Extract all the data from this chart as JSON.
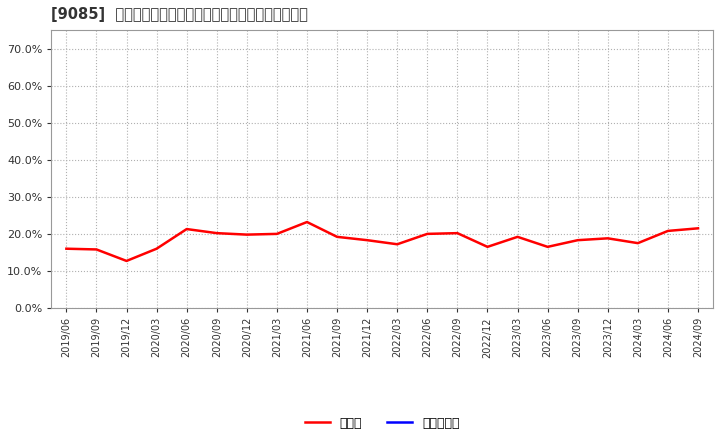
{
  "title": "[9085]  現預金、有利子負債の総資産に対する比率の推移",
  "background_color": "#ffffff",
  "plot_bg_color": "#ffffff",
  "grid_color": "#b0b0b0",
  "cash_color": "#ff0000",
  "debt_color": "#0000ff",
  "cash_label": "現預金",
  "debt_label": "有利子負債",
  "ylim": [
    0.0,
    0.75
  ],
  "yticks": [
    0.0,
    0.1,
    0.2,
    0.3,
    0.4,
    0.5,
    0.6,
    0.7
  ],
  "dates": [
    "2019/06",
    "2019/09",
    "2019/12",
    "2020/03",
    "2020/06",
    "2020/09",
    "2020/12",
    "2021/03",
    "2021/06",
    "2021/09",
    "2021/12",
    "2022/03",
    "2022/06",
    "2022/09",
    "2022/12",
    "2023/03",
    "2023/06",
    "2023/09",
    "2023/12",
    "2024/03",
    "2024/06",
    "2024/09"
  ],
  "cash_values": [
    0.16,
    0.158,
    0.127,
    0.16,
    0.213,
    0.202,
    0.198,
    0.2,
    0.232,
    0.192,
    0.183,
    0.172,
    0.2,
    0.202,
    0.165,
    0.192,
    0.165,
    0.183,
    0.188,
    0.175,
    0.208,
    0.215
  ]
}
